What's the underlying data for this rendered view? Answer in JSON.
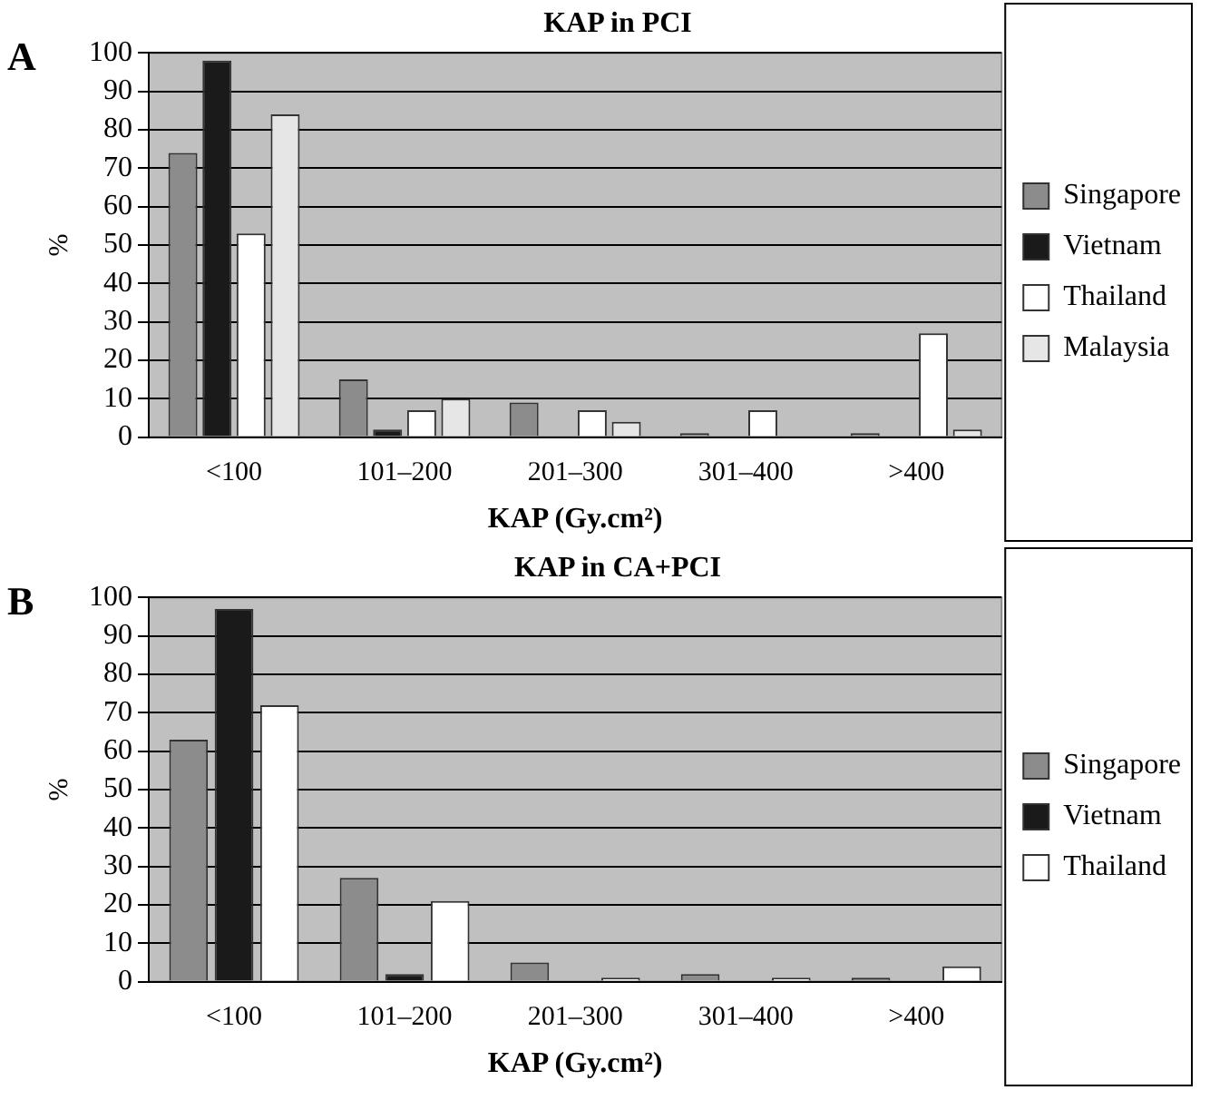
{
  "chart_data": [
    {
      "type": "bar",
      "title": "KAP in PCI",
      "xlabel": "KAP (Gy.cm²)",
      "ylabel": "%",
      "annotations": [
        "A"
      ],
      "categories": [
        "<100",
        "101–200",
        "201–300",
        "301–400",
        ">400"
      ],
      "series": [
        {
          "name": "Singapore",
          "color": "#8c8c8c",
          "values": [
            74,
            15,
            9,
            1,
            1
          ]
        },
        {
          "name": "Vietnam",
          "color": "#1a1a1a",
          "values": [
            98,
            2,
            0,
            0,
            0
          ]
        },
        {
          "name": "Thailand",
          "color": "#ffffff",
          "values": [
            53,
            7,
            7,
            7,
            27
          ]
        },
        {
          "name": "Malaysia",
          "color": "#e6e6e6",
          "values": [
            84,
            10,
            4,
            0,
            2
          ]
        }
      ],
      "ylim": [
        0,
        100
      ],
      "yticks": [
        0,
        10,
        20,
        30,
        40,
        50,
        60,
        70,
        80,
        90,
        100
      ],
      "grid": "y",
      "legend": "right"
    },
    {
      "type": "bar",
      "title": "KAP in CA+PCI",
      "xlabel": "KAP (Gy.cm²)",
      "ylabel": "%",
      "annotations": [
        "B"
      ],
      "categories": [
        "<100",
        "101–200",
        "201–300",
        "301–400",
        ">400"
      ],
      "series": [
        {
          "name": "Singapore",
          "color": "#8c8c8c",
          "values": [
            63,
            27,
            5,
            2,
            1
          ]
        },
        {
          "name": "Vietnam",
          "color": "#1a1a1a",
          "values": [
            97,
            2,
            0,
            0,
            0
          ]
        },
        {
          "name": "Thailand",
          "color": "#ffffff",
          "values": [
            72,
            21,
            1,
            1,
            4
          ]
        }
      ],
      "ylim": [
        0,
        100
      ],
      "yticks": [
        0,
        10,
        20,
        30,
        40,
        50,
        60,
        70,
        80,
        90,
        100
      ],
      "grid": "y",
      "legend": "right"
    }
  ]
}
